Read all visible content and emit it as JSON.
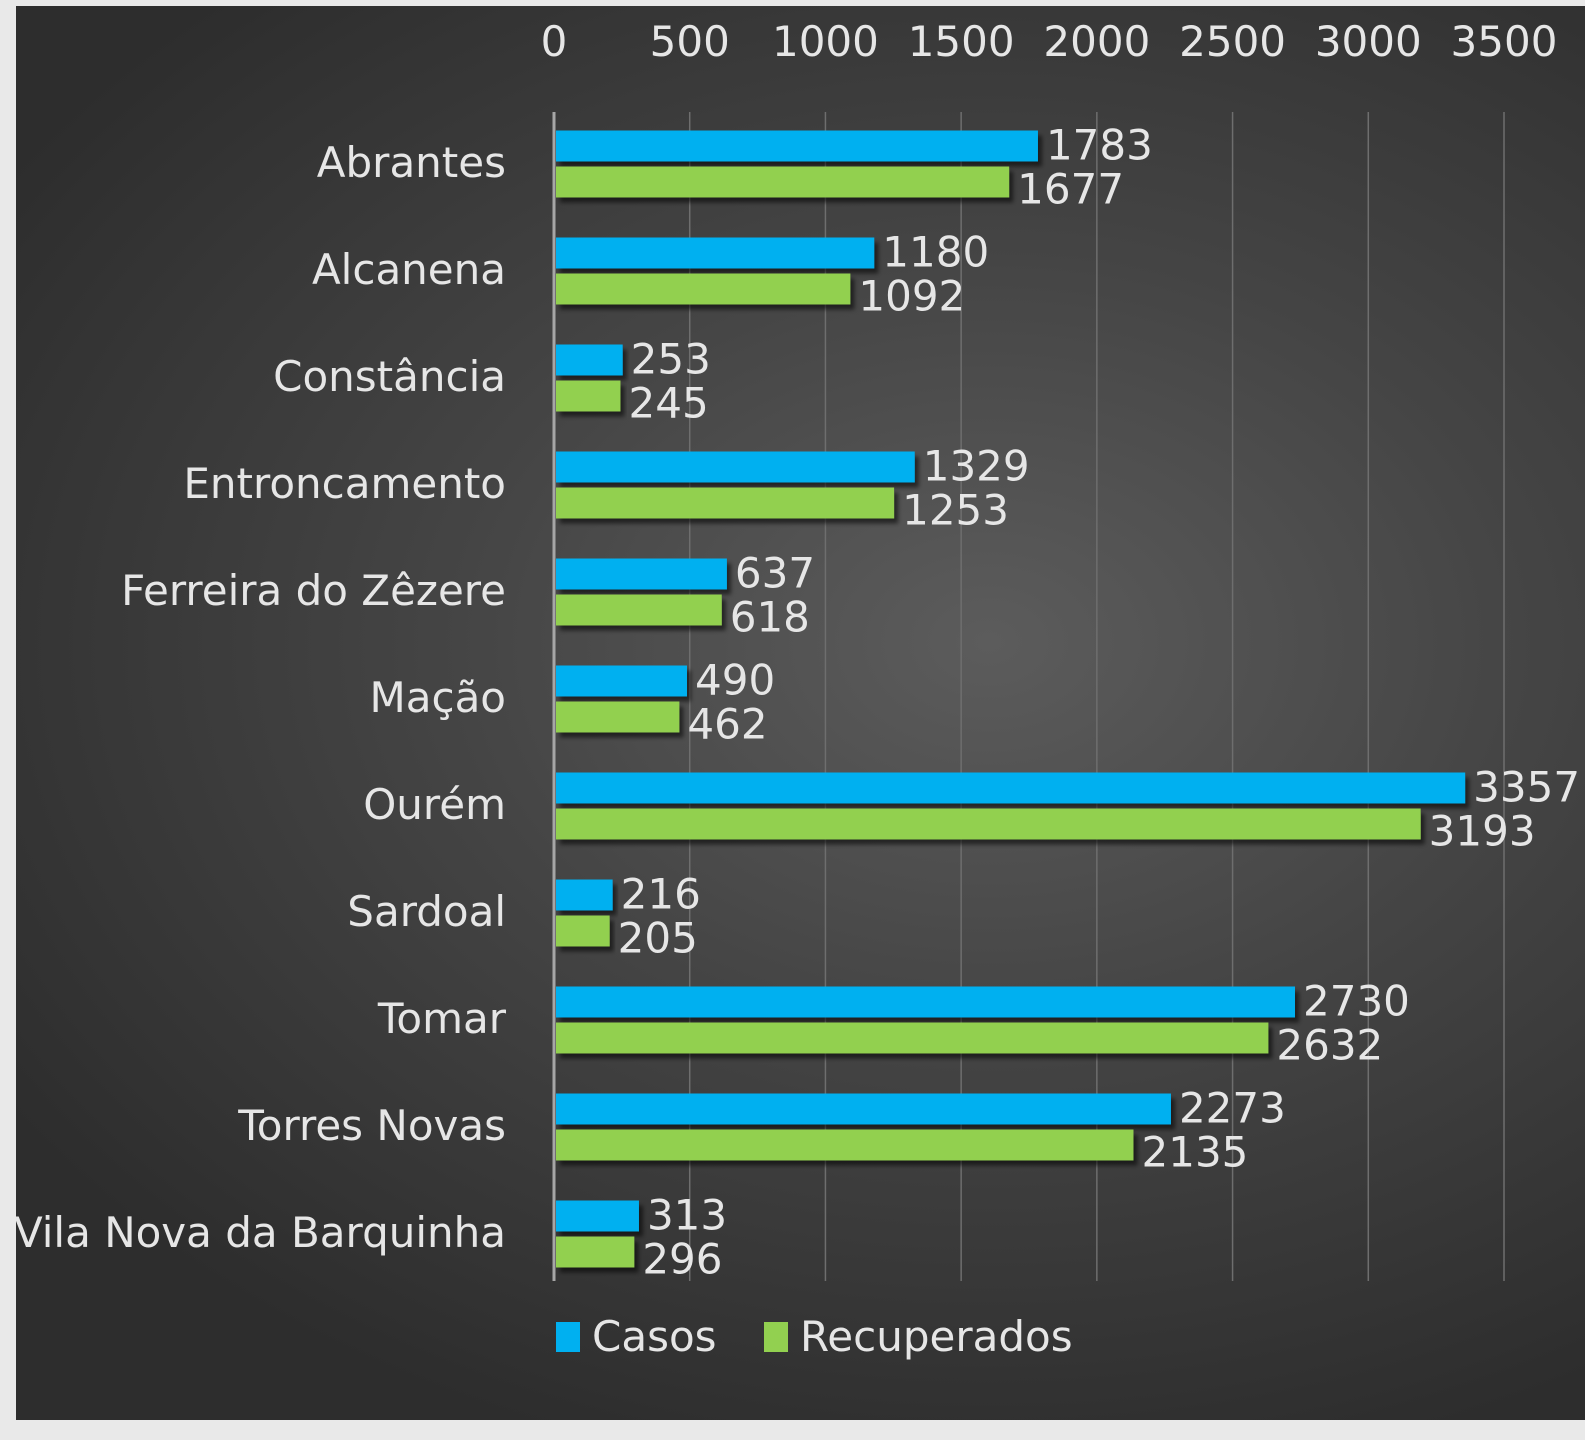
{
  "chart_data": {
    "type": "bar",
    "orientation": "horizontal",
    "categories": [
      "Abrantes",
      "Alcanena",
      "Constância",
      "Entroncamento",
      "Ferreira do Zêzere",
      "Mação",
      "Ourém",
      "Sardoal",
      "Tomar",
      "Torres Novas",
      "Vila Nova da Barquinha"
    ],
    "series": [
      {
        "name": "Casos",
        "color": "#00b0f0",
        "values": [
          1783,
          1180,
          253,
          1329,
          637,
          490,
          3357,
          216,
          2730,
          2273,
          313
        ]
      },
      {
        "name": "Recuperados",
        "color": "#92d050",
        "values": [
          1677,
          1092,
          245,
          1253,
          618,
          462,
          3193,
          205,
          2632,
          2135,
          296
        ]
      }
    ],
    "xlim": [
      0,
      3500
    ],
    "x_ticks": [
      0,
      500,
      1000,
      1500,
      2000,
      2500,
      3000,
      3500
    ],
    "x_axis_position": "top",
    "grid": true,
    "legend_position": "bottom",
    "data_labels": true
  }
}
